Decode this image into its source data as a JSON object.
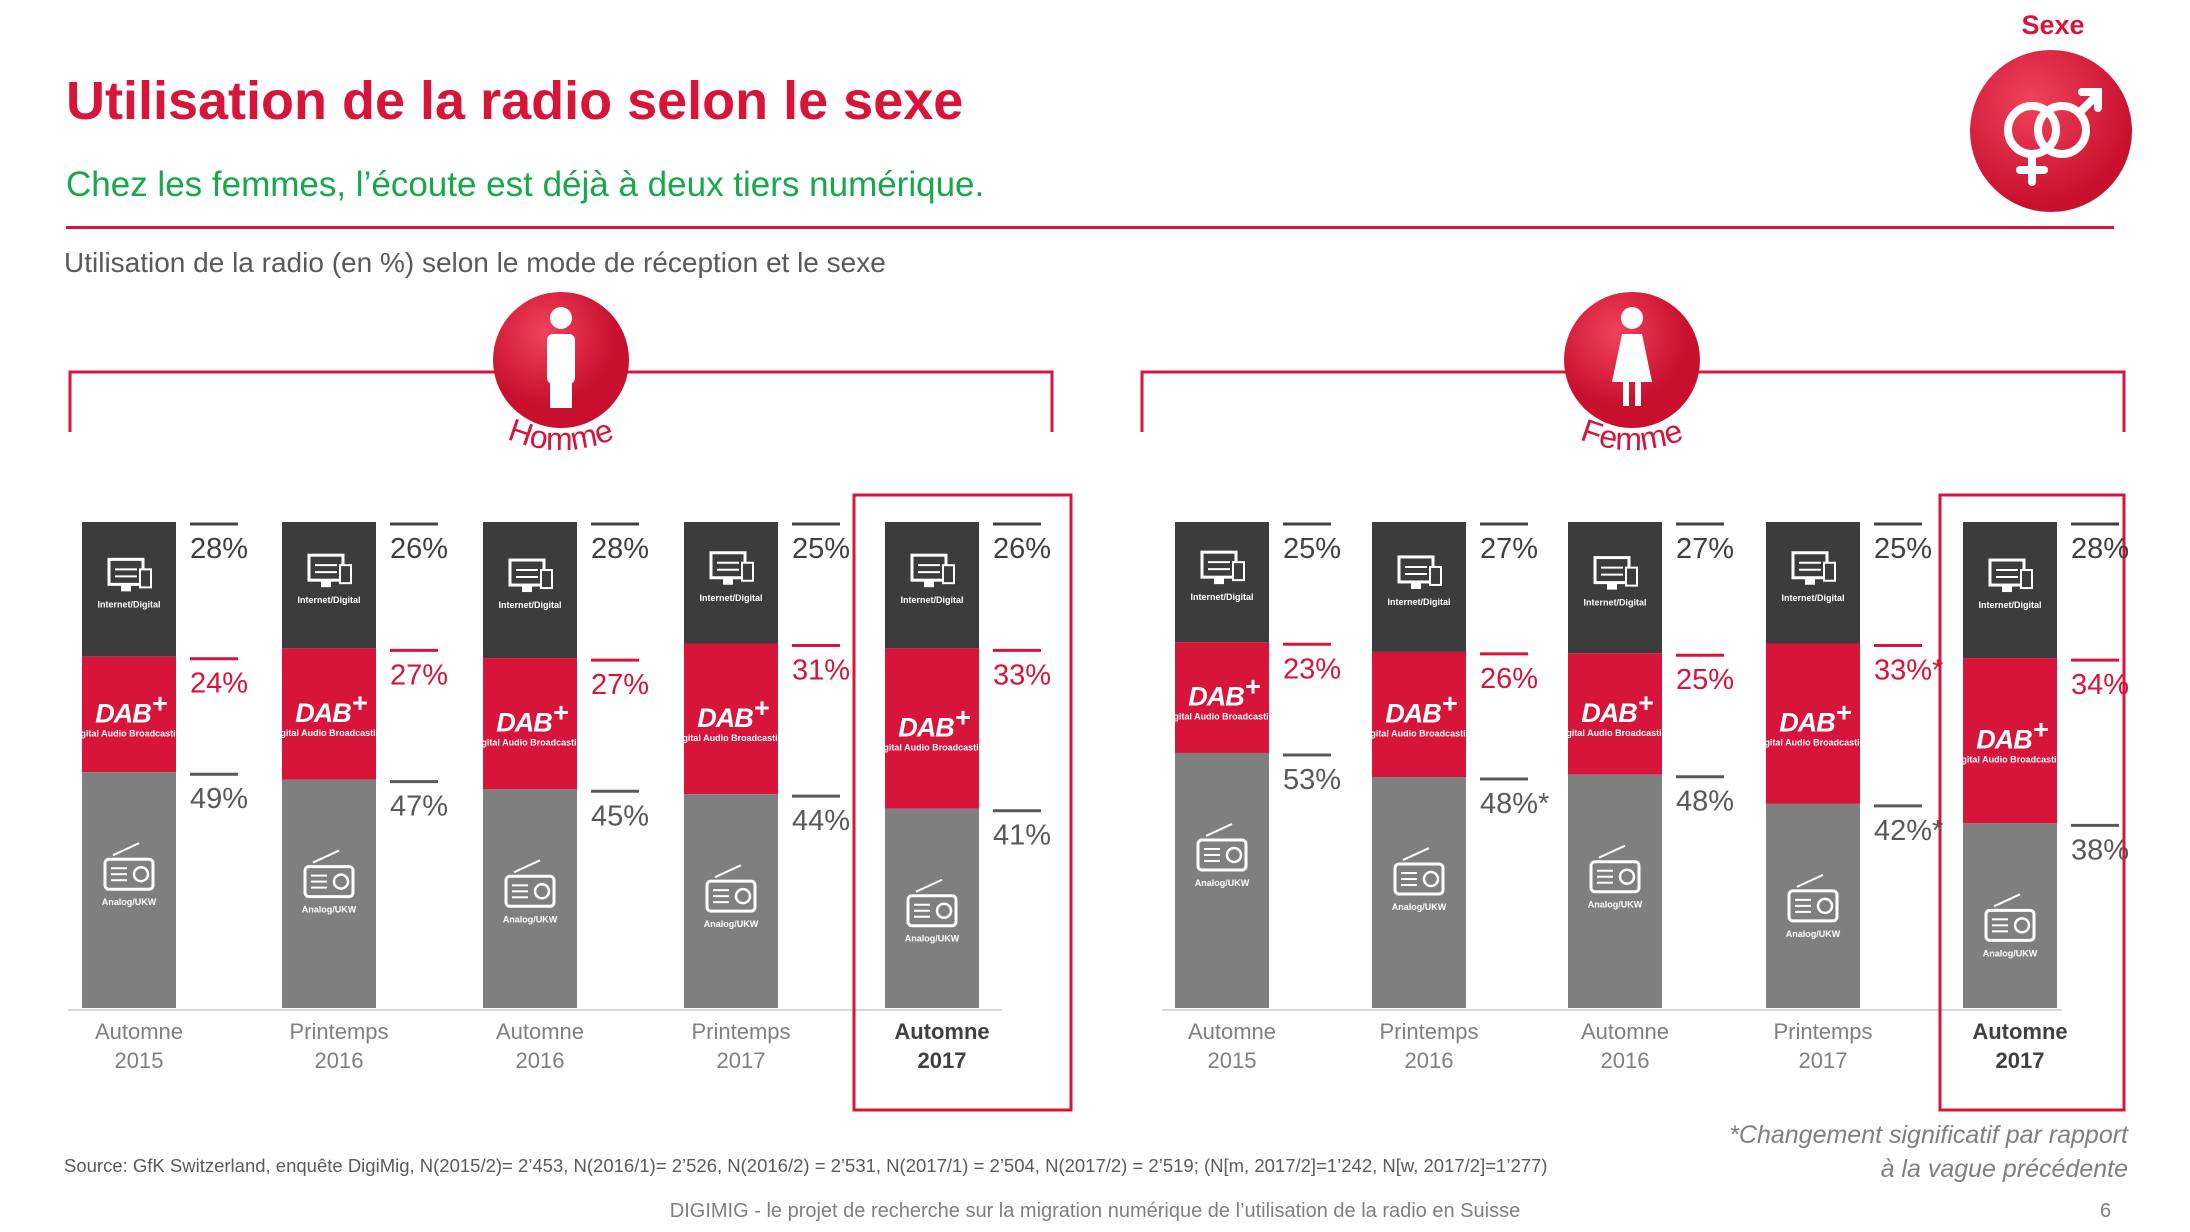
{
  "header": {
    "title": "Utilisation de la radio selon le sexe",
    "subtitle": "Chez les femmes, l’écoute est déjà à deux tiers numérique.",
    "chart_description": "Utilisation de la radio (en %) selon le mode de réception et le sexe"
  },
  "badge": {
    "label": "Sexe",
    "icon": "gender-symbols-icon"
  },
  "legend_segments": {
    "internet": "Internet/Digital",
    "dab": "Digital Audio Broadcasting",
    "dab_logo": "DAB",
    "analog": "Analog/UKW"
  },
  "colors": {
    "accent": "#d7153a",
    "internet": "#3c3c3c",
    "dab": "#d7153a",
    "analog": "#7f7f7f",
    "subtitle": "#17a84b"
  },
  "chart_data": [
    {
      "type": "bar",
      "stacked": true,
      "group_label": "Homme",
      "group_icon": "male-person-icon",
      "categories": [
        [
          "Automne",
          "2015"
        ],
        [
          "Printemps",
          "2016"
        ],
        [
          "Automne",
          "2016"
        ],
        [
          "Printemps",
          "2017"
        ],
        [
          "Automne",
          "2017"
        ]
      ],
      "highlight_index": 4,
      "series": [
        {
          "name": "Analog/UKW",
          "values": [
            49,
            47,
            45,
            44,
            41
          ],
          "labels": [
            "49%",
            "47%",
            "45%",
            "44%",
            "41%"
          ]
        },
        {
          "name": "Digital Audio Broadcasting",
          "values": [
            24,
            27,
            27,
            31,
            33
          ],
          "labels": [
            "24%",
            "27%",
            "27%",
            "31%",
            "33%"
          ]
        },
        {
          "name": "Internet/Digital",
          "values": [
            28,
            26,
            28,
            25,
            26
          ],
          "labels": [
            "28%",
            "26%",
            "28%",
            "25%",
            "26%"
          ]
        }
      ]
    },
    {
      "type": "bar",
      "stacked": true,
      "group_label": "Femme",
      "group_icon": "female-person-icon",
      "categories": [
        [
          "Automne",
          "2015"
        ],
        [
          "Printemps",
          "2016"
        ],
        [
          "Automne",
          "2016"
        ],
        [
          "Printemps",
          "2017"
        ],
        [
          "Automne",
          "2017"
        ]
      ],
      "highlight_index": 4,
      "series": [
        {
          "name": "Analog/UKW",
          "values": [
            53,
            48,
            48,
            42,
            38
          ],
          "labels": [
            "53%",
            "48%*",
            "48%",
            "42%*",
            "38%"
          ]
        },
        {
          "name": "Digital Audio Broadcasting",
          "values": [
            23,
            26,
            25,
            33,
            34
          ],
          "labels": [
            "23%",
            "26%",
            "25%",
            "33%*",
            "34%"
          ]
        },
        {
          "name": "Internet/Digital",
          "values": [
            25,
            27,
            27,
            25,
            28
          ],
          "labels": [
            "25%",
            "27%",
            "27%",
            "25%",
            "28%"
          ]
        }
      ]
    }
  ],
  "source": "Source: GfK Switzerland, enquête DigiMig, N(2015/2)= 2’453, N(2016/1)= 2’526, N(2016/2) = 2’531, N(2017/1) = 2’504, N(2017/2) = 2’519; (N[m, 2017/2]=1’242, N[w, 2017/2]=1’277)",
  "footnote": [
    "*Changement significatif par rapport",
    "à la vague précédente"
  ],
  "footer": "DIGIMIG - le projet de recherche sur la migration numérique de l’utilisation de la radio en Suisse",
  "page_number": "6"
}
